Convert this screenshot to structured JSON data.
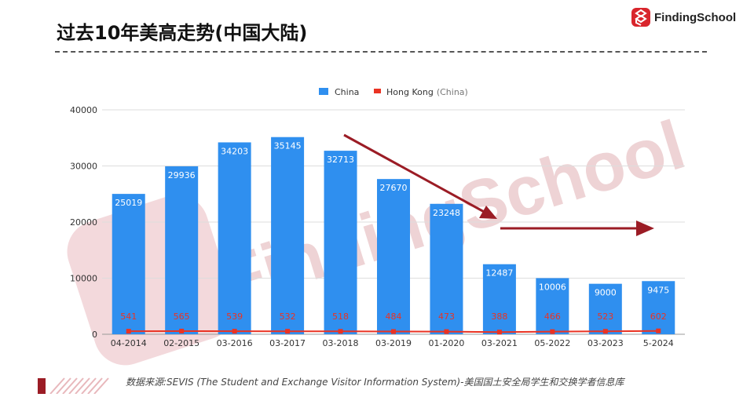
{
  "header": {
    "title": "过去10年美高走势(中国大陆)",
    "brand_name": "FindingSchool",
    "brand_color": "#d9252c"
  },
  "source_note": "数据来源:SEVIS (The Student and Exchange Visitor Information System)-美国国土安全局学生和交换学者信息库",
  "watermark": {
    "text": "FindingSchool",
    "color": "#e8b8bc"
  },
  "colors": {
    "bar": "#2f8fef",
    "line": "#ea3323",
    "arrow": "#9b1c25",
    "grid": "#dddddd"
  },
  "chart_data": {
    "type": "bar",
    "categories": [
      "04-2014",
      "02-2015",
      "03-2016",
      "03-2017",
      "03-2018",
      "03-2019",
      "01-2020",
      "03-2021",
      "05-2022",
      "03-2023",
      "5-2024"
    ],
    "series": [
      {
        "name": "China",
        "type": "bar",
        "values": [
          25019,
          29936,
          34203,
          35145,
          32713,
          27670,
          23248,
          12487,
          10006,
          9000,
          9475
        ]
      },
      {
        "name": "Hong Kong",
        "name_suffix": "(China)",
        "type": "line",
        "values": [
          541,
          565,
          539,
          532,
          518,
          484,
          473,
          388,
          466,
          523,
          602
        ]
      }
    ],
    "ylim": [
      0,
      40000
    ],
    "yticks": [
      0,
      10000,
      20000,
      30000,
      40000
    ],
    "legend": "top-center",
    "grid": true
  }
}
